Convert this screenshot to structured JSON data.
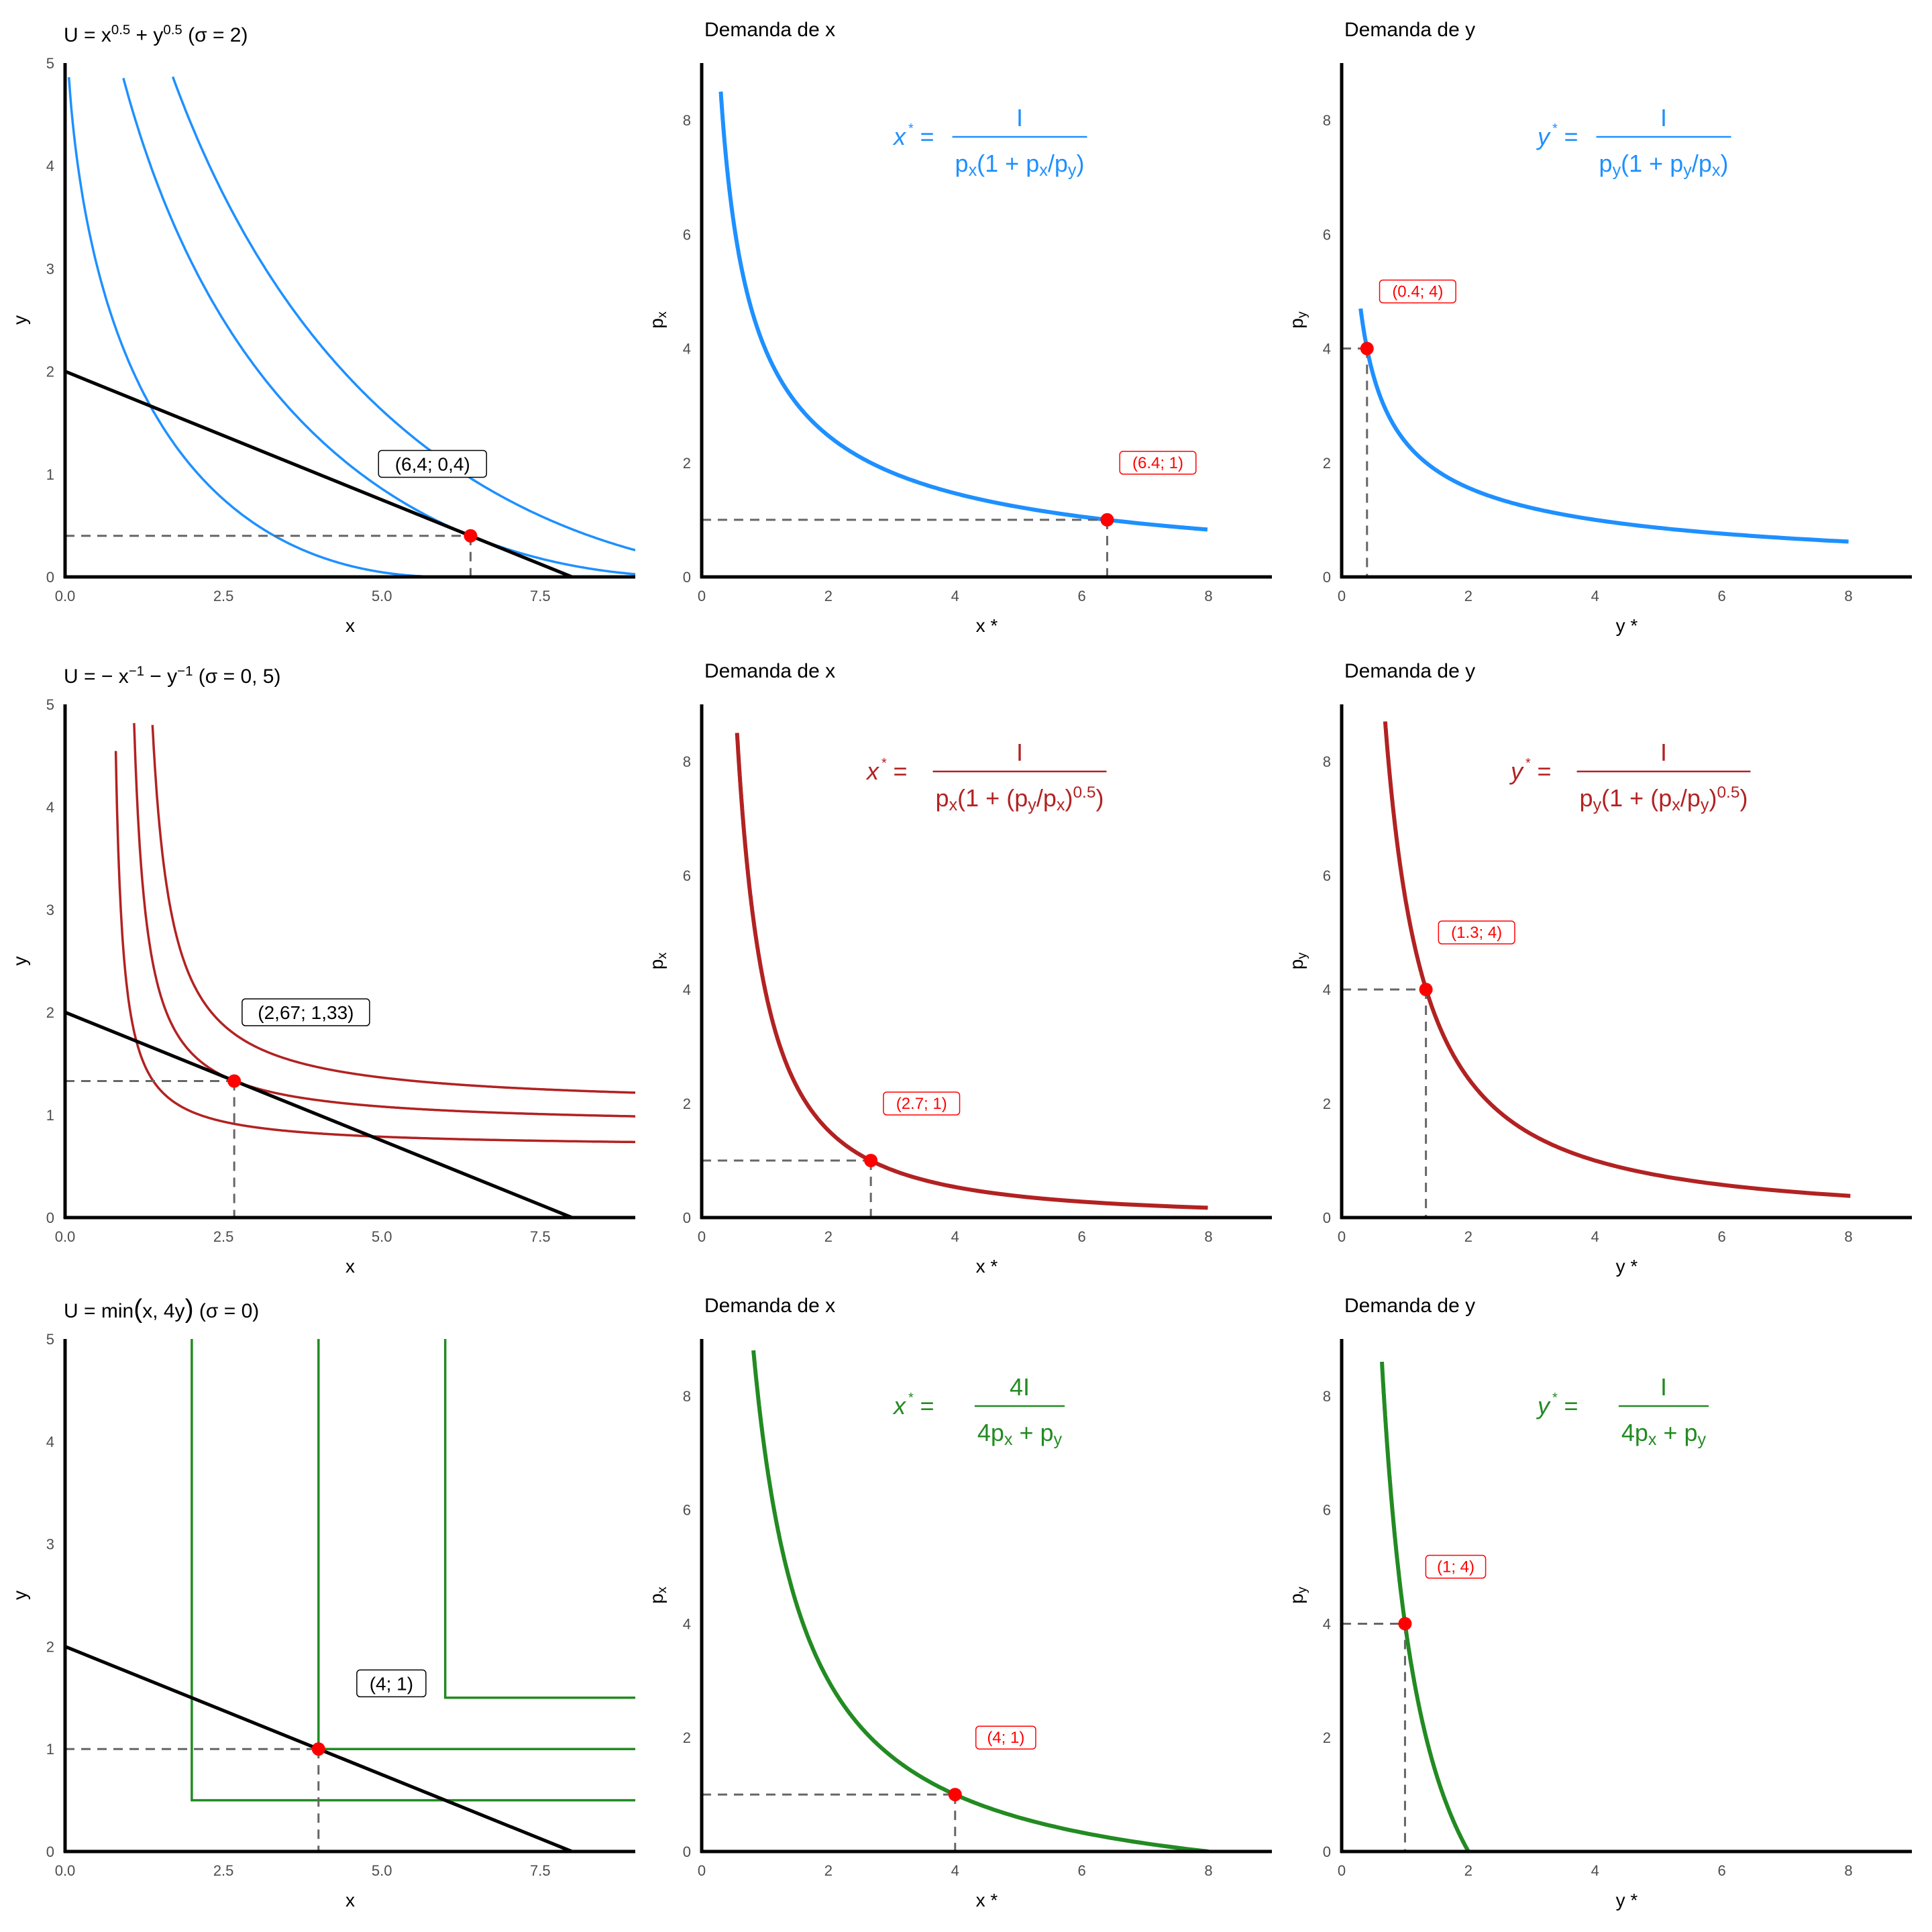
{
  "figure": {
    "row_titles": [
      {
        "parts": [
          [
            "U = x",
            ""
          ],
          [
            "0.5",
            "sup"
          ],
          [
            " + y",
            ""
          ],
          [
            "0.5",
            "sup"
          ],
          [
            " (σ = 2)",
            ""
          ]
        ]
      },
      {
        "parts": [
          [
            "U =  − x",
            ""
          ],
          [
            "−1",
            "sup"
          ],
          [
            " − y",
            ""
          ],
          [
            "−1",
            "sup"
          ],
          [
            " (σ = 0, 5)",
            ""
          ]
        ]
      },
      {
        "parts": [
          [
            "U = min",
            ""
          ],
          [
            "(",
            "big"
          ],
          [
            "x, 4y",
            ""
          ],
          [
            ")",
            "big"
          ],
          [
            " (σ = 0)",
            ""
          ]
        ]
      }
    ],
    "demand_x_title": "Demanda de x",
    "demand_y_title": "Demanda de y"
  },
  "chart_data": [
    {
      "id": "pref-ces2",
      "type": "line",
      "title": "U = x^0.5 + y^0.5 (σ = 2)",
      "xlabel": "x",
      "ylabel": "y",
      "xlim": [
        0,
        9
      ],
      "ylim": [
        0,
        5
      ],
      "xticks": [
        0,
        2.5,
        5,
        7.5
      ],
      "xtick_labels": [
        "0.0",
        "2.5",
        "5.0",
        "7.5"
      ],
      "yticks": [
        0,
        1,
        2,
        3,
        4,
        5
      ],
      "ytick_labels": [
        "0",
        "1",
        "2",
        "3",
        "4",
        "5"
      ],
      "color": "#1E90FF",
      "curve_kind": "cobb_sqrt",
      "levels": [
        2.45,
        3.1623,
        3.51
      ],
      "budget": {
        "income": 8,
        "px": 1,
        "py": 4
      },
      "point": {
        "x": 6.4,
        "y": 0.4
      },
      "label": {
        "text": "(6,4; 0,4)",
        "x": 5.8,
        "y": 1.1
      }
    },
    {
      "id": "demand-x-ces2",
      "type": "line",
      "title": "Demanda de x",
      "xlabel": "x *",
      "ylabel": "p_x",
      "xlim": [
        0,
        9
      ],
      "ylim": [
        0,
        9
      ],
      "xticks": [
        0,
        2,
        4,
        6,
        8
      ],
      "xtick_labels": [
        "0",
        "2",
        "4",
        "6",
        "8"
      ],
      "yticks": [
        0,
        2,
        4,
        6,
        8
      ],
      "ytick_labels": [
        "0",
        "2",
        "4",
        "6",
        "8"
      ],
      "color": "#1E90FF",
      "demand_kind": "x_ces2",
      "params": {
        "income": 8,
        "other_price": 4
      },
      "price_range": [
        0.83,
        8.5
      ],
      "formula": {
        "lhs": "x",
        "num": "I",
        "den": [
          [
            "p",
            ""
          ],
          [
            "x",
            "sub"
          ],
          [
            "(1 + p",
            ""
          ],
          [
            "x",
            "sub"
          ],
          [
            "/p",
            ""
          ],
          [
            "y",
            "sub"
          ],
          [
            ")",
            ""
          ]
        ]
      },
      "point": {
        "x": 6.4,
        "y": 1
      },
      "label": {
        "text": "(6.4; 1)",
        "x": 7.2,
        "y": 2
      }
    },
    {
      "id": "demand-y-ces2",
      "type": "line",
      "title": "Demanda de y",
      "xlabel": "y *",
      "ylabel": "p_y",
      "xlim": [
        0,
        9
      ],
      "ylim": [
        0,
        9
      ],
      "xticks": [
        0,
        2,
        4,
        6,
        8
      ],
      "xtick_labels": [
        "0",
        "2",
        "4",
        "6",
        "8"
      ],
      "yticks": [
        0,
        2,
        4,
        6,
        8
      ],
      "ytick_labels": [
        "0",
        "2",
        "4",
        "6",
        "8"
      ],
      "color": "#1E90FF",
      "demand_kind": "y_ces2",
      "params": {
        "income": 8,
        "other_price": 1
      },
      "price_range": [
        0.618,
        4.7
      ],
      "formula": {
        "lhs": "y",
        "num": "I",
        "den": [
          [
            "p",
            ""
          ],
          [
            "y",
            "sub"
          ],
          [
            "(1 + p",
            ""
          ],
          [
            "y",
            "sub"
          ],
          [
            "/p",
            ""
          ],
          [
            "x",
            "sub"
          ],
          [
            ")",
            ""
          ]
        ]
      },
      "point": {
        "x": 0.4,
        "y": 4
      },
      "label": {
        "text": "(0.4; 4)",
        "x": 1.2,
        "y": 5
      }
    },
    {
      "id": "pref-ces05",
      "type": "line",
      "title": "U = −x^−1 − y^−1 (σ = 0, 5)",
      "xlabel": "x",
      "ylabel": "y",
      "xlim": [
        0,
        9
      ],
      "ylim": [
        0,
        5
      ],
      "xticks": [
        0,
        2.5,
        5,
        7.5
      ],
      "xtick_labels": [
        "0.0",
        "2.5",
        "5.0",
        "7.5"
      ],
      "yticks": [
        0,
        1,
        2,
        3,
        4,
        5
      ],
      "ytick_labels": [
        "0",
        "1",
        "2",
        "3",
        "4",
        "5"
      ],
      "color": "#B22222",
      "curve_kind": "inverse",
      "levels": [
        -1.47,
        -1.125,
        -0.933
      ],
      "budget": {
        "income": 8,
        "px": 1,
        "py": 4
      },
      "point": {
        "x": 2.67,
        "y": 1.33
      },
      "label": {
        "text": "(2,67; 1,33)",
        "x": 3.8,
        "y": 2.0
      }
    },
    {
      "id": "demand-x-ces05",
      "type": "line",
      "title": "Demanda de x",
      "xlabel": "x *",
      "ylabel": "p_x",
      "xlim": [
        0,
        9
      ],
      "ylim": [
        0,
        9
      ],
      "xticks": [
        0,
        2,
        4,
        6,
        8
      ],
      "xtick_labels": [
        "0",
        "2",
        "4",
        "6",
        "8"
      ],
      "yticks": [
        0,
        2,
        4,
        6,
        8
      ],
      "ytick_labels": [
        "0",
        "2",
        "4",
        "6",
        "8"
      ],
      "color": "#B22222",
      "demand_kind": "x_ces05",
      "params": {
        "income": 8,
        "other_price": 4
      },
      "price_range": [
        0.172,
        8.5
      ],
      "formula": {
        "lhs": "x",
        "num": "I",
        "den": [
          [
            "p",
            ""
          ],
          [
            "x",
            "sub"
          ],
          [
            "(1 + (p",
            ""
          ],
          [
            "y",
            "sub"
          ],
          [
            "/p",
            ""
          ],
          [
            "x",
            "sub"
          ],
          [
            ")",
            ""
          ],
          [
            "0.5",
            "sup"
          ],
          [
            ")",
            ""
          ]
        ]
      },
      "point": {
        "x": 2.67,
        "y": 1
      },
      "label": {
        "text": "(2.7; 1)",
        "x": 3.47,
        "y": 2
      }
    },
    {
      "id": "demand-y-ces05",
      "type": "line",
      "title": "Demanda de y",
      "xlabel": "y *",
      "ylabel": "p_y",
      "xlim": [
        0,
        9
      ],
      "ylim": [
        0,
        9
      ],
      "xticks": [
        0,
        2,
        4,
        6,
        8
      ],
      "xtick_labels": [
        "0",
        "2",
        "4",
        "6",
        "8"
      ],
      "yticks": [
        0,
        2,
        4,
        6,
        8
      ],
      "ytick_labels": [
        "0",
        "2",
        "4",
        "6",
        "8"
      ],
      "color": "#B22222",
      "demand_kind": "y_ces05",
      "params": {
        "income": 8,
        "other_price": 1
      },
      "price_range": [
        0.38,
        8.7
      ],
      "formula": {
        "lhs": "y",
        "num": "I",
        "den": [
          [
            "p",
            ""
          ],
          [
            "y",
            "sub"
          ],
          [
            "(1 + (p",
            ""
          ],
          [
            "x",
            "sub"
          ],
          [
            "/p",
            ""
          ],
          [
            "y",
            "sub"
          ],
          [
            ")",
            ""
          ],
          [
            "0.5",
            "sup"
          ],
          [
            ")",
            ""
          ]
        ]
      },
      "point": {
        "x": 1.33,
        "y": 4
      },
      "label": {
        "text": "(1.3; 4)",
        "x": 2.13,
        "y": 5
      }
    },
    {
      "id": "pref-leontief",
      "type": "line",
      "title": "U = min(x, 4y) (σ = 0)",
      "xlabel": "x",
      "ylabel": "y",
      "xlim": [
        0,
        9
      ],
      "ylim": [
        0,
        5
      ],
      "xticks": [
        0,
        2.5,
        5,
        7.5
      ],
      "xtick_labels": [
        "0.0",
        "2.5",
        "5.0",
        "7.5"
      ],
      "yticks": [
        0,
        1,
        2,
        3,
        4,
        5
      ],
      "ytick_labels": [
        "0",
        "1",
        "2",
        "3",
        "4",
        "5"
      ],
      "color": "#228B22",
      "curve_kind": "leontief",
      "corners": [
        [
          2,
          0.5
        ],
        [
          4,
          1
        ],
        [
          6,
          1.5
        ]
      ],
      "budget": {
        "income": 8,
        "px": 1,
        "py": 4
      },
      "point": {
        "x": 4,
        "y": 1
      },
      "label": {
        "text": "(4; 1)",
        "x": 5.15,
        "y": 1.64
      }
    },
    {
      "id": "demand-x-leontief",
      "type": "line",
      "title": "Demanda de x",
      "xlabel": "x *",
      "ylabel": "p_x",
      "xlim": [
        0,
        9
      ],
      "ylim": [
        0,
        9
      ],
      "xticks": [
        0,
        2,
        4,
        6,
        8
      ],
      "xtick_labels": [
        "0",
        "2",
        "4",
        "6",
        "8"
      ],
      "yticks": [
        0,
        2,
        4,
        6,
        8
      ],
      "ytick_labels": [
        "0",
        "2",
        "4",
        "6",
        "8"
      ],
      "color": "#228B22",
      "demand_kind": "x_leontief",
      "params": {
        "income": 8,
        "other_price": 4
      },
      "price_range": [
        0,
        8.8
      ],
      "formula": {
        "lhs": "x",
        "num": "4I",
        "den": [
          [
            "4p",
            ""
          ],
          [
            "x",
            "sub"
          ],
          [
            " + p",
            ""
          ],
          [
            "y",
            "sub"
          ]
        ]
      },
      "point": {
        "x": 4,
        "y": 1
      },
      "label": {
        "text": "(4; 1)",
        "x": 4.8,
        "y": 2
      }
    },
    {
      "id": "demand-y-leontief",
      "type": "line",
      "title": "Demanda de y",
      "xlabel": "y *",
      "ylabel": "p_y",
      "xlim": [
        0,
        9
      ],
      "ylim": [
        0,
        9
      ],
      "xticks": [
        0,
        2,
        4,
        6,
        8
      ],
      "xtick_labels": [
        "0",
        "2",
        "4",
        "6",
        "8"
      ],
      "yticks": [
        0,
        2,
        4,
        6,
        8
      ],
      "ytick_labels": [
        "0",
        "2",
        "4",
        "6",
        "8"
      ],
      "color": "#228B22",
      "demand_kind": "y_leontief",
      "params": {
        "income": 8,
        "other_price": 1
      },
      "price_range": [
        0,
        8.6
      ],
      "formula": {
        "lhs": "y",
        "num": "I",
        "den": [
          [
            "4p",
            ""
          ],
          [
            "x",
            "sub"
          ],
          [
            " + p",
            ""
          ],
          [
            "y",
            "sub"
          ]
        ]
      },
      "point": {
        "x": 1,
        "y": 4
      },
      "label": {
        "text": "(1; 4)",
        "x": 1.8,
        "y": 5
      }
    }
  ]
}
